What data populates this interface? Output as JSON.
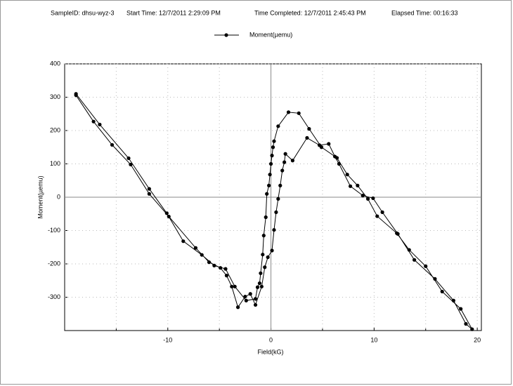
{
  "chart_data": {
    "type": "line",
    "header": [
      "SampleID: dhsu-wyz-3",
      "Start Time: 12/7/2011 2:29:09 PM",
      "Time Completed: 12/7/2011 2:45:43 PM",
      "Elapsed Time:  00:16:33"
    ],
    "xlabel": "Field(kG)",
    "ylabel": "Moment(µemu)",
    "xlim": [
      -20,
      20.4
    ],
    "ylim": [
      -400,
      400
    ],
    "xticks": [
      -10,
      0,
      10,
      20
    ],
    "x_minor_ticks": [
      -15,
      -5,
      5,
      15
    ],
    "yticks": [
      -300,
      -200,
      -100,
      0,
      100,
      200,
      300,
      400
    ],
    "grid": true,
    "legend": "top",
    "x": [
      -18.9,
      -17.2,
      -15.4,
      -13.6,
      -11.8,
      -9.9,
      -7.3,
      -6.0,
      -4.9,
      -4.3,
      -3.8,
      -3.2,
      -2.5,
      -2.0,
      -1.5,
      -0.9,
      -0.6,
      -0.3,
      0.1,
      0.3,
      0.5,
      0.7,
      0.9,
      1.1,
      1.3,
      1.4,
      2.1,
      3.5,
      4.7,
      5.6,
      6.2,
      6.6,
      7.7,
      8.9,
      9.9,
      10.8,
      12.3,
      13.9,
      15.9,
      17.7,
      18.9,
      19.5,
      18.4,
      16.6,
      15,
      13.4,
      12.2,
      10.3,
      9.4,
      8.4,
      7.4,
      6.4,
      4.9,
      3.7,
      2.7,
      1.7,
      0.7,
      0.3,
      0.2,
      0.1,
      0.0,
      -0.1,
      -0.2,
      -0.4,
      -0.5,
      -0.7,
      -0.8,
      -1.0,
      -1.1,
      -1.3,
      -1.5,
      -2.4,
      -3.5,
      -4.4,
      -5.5,
      -6.7,
      -8.5,
      -10.1,
      -11.8,
      -13.8,
      -16.6,
      -18.9
    ],
    "series": [
      {
        "name": "Moment(µemu)",
        "color": "#000000",
        "values": [
          306,
          227,
          157,
          98,
          10,
          -58,
          -152,
          -195,
          -212,
          -235,
          -268,
          -330,
          -298,
          -290,
          -323,
          -268,
          -210,
          -180,
          -160,
          -98,
          -45,
          -5,
          35,
          80,
          105,
          130,
          110,
          178,
          156,
          160,
          122,
          100,
          33,
          5,
          -3,
          -45,
          -110,
          -188,
          -245,
          -310,
          -380,
          -396,
          -335,
          -283,
          -207,
          -158,
          -108,
          -57,
          -5,
          35,
          68,
          118,
          150,
          205,
          252,
          255,
          213,
          168,
          150,
          125,
          100,
          68,
          35,
          10,
          -60,
          -115,
          -172,
          -228,
          -258,
          -270,
          -305,
          -310,
          -268,
          -215,
          -205,
          -173,
          -132,
          -48,
          25,
          117,
          218,
          310
        ]
      }
    ]
  }
}
